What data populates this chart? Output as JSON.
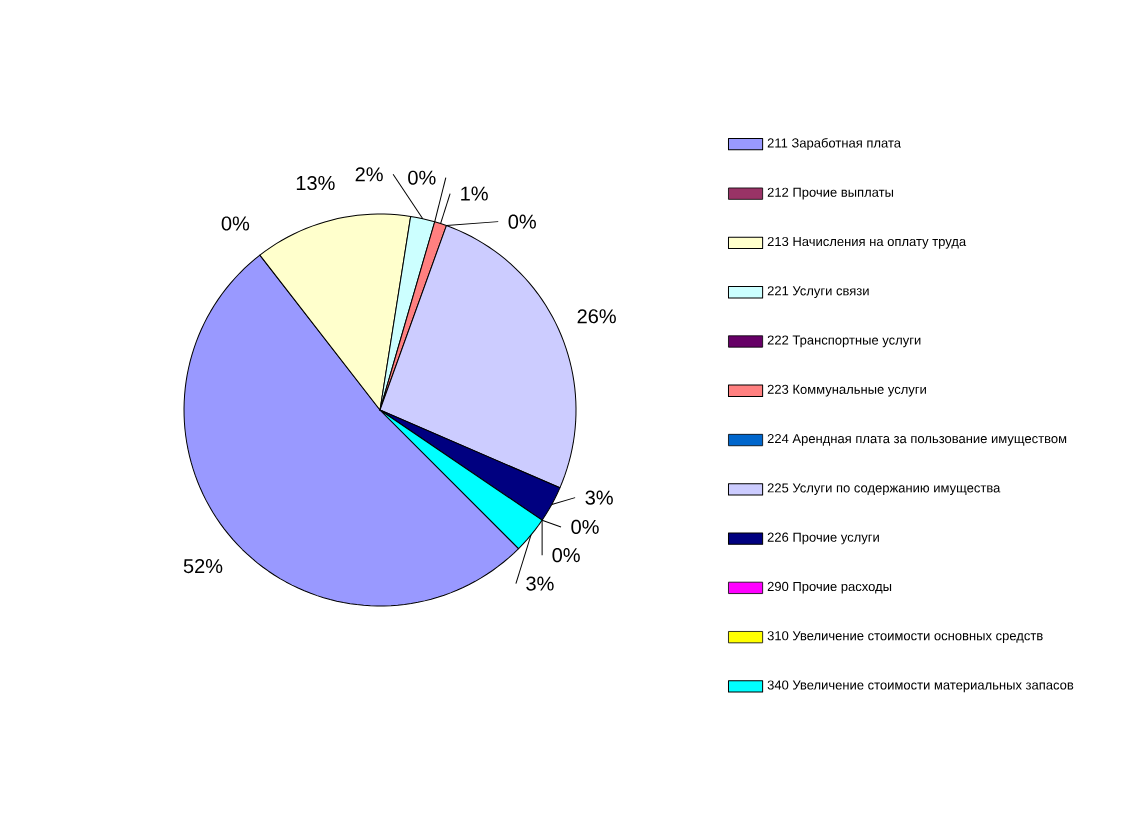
{
  "chart_data": {
    "type": "pie",
    "categories": [
      "211 Заработная плата",
      "212 Прочие выплаты",
      "213 Начисления на оплату труда",
      "221 Услуги связи",
      "222 Транспортные услуги",
      "223 Коммунальные услуги",
      "224 Арендная плата за пользование имуществом",
      "225 Услуги по содержанию имущества",
      "226 Прочие услуги",
      "290 Прочие расходы",
      "310 Увеличение стоимости основных средств",
      "340 Увеличение стоимости материальных запасов"
    ],
    "values": [
      52,
      0,
      13,
      2,
      0,
      1,
      0,
      26,
      3,
      0,
      0,
      3
    ],
    "colors": [
      "#9999ff",
      "#993366",
      "#ffffcc",
      "#ccffff",
      "#660066",
      "#ff8080",
      "#0066cc",
      "#ccccff",
      "#000080",
      "#ff00ff",
      "#ffff00",
      "#00ffff"
    ],
    "value_labels": [
      "52%",
      "0%",
      "13%",
      "2%",
      "0%",
      "1%",
      "0%",
      "26%",
      "3%",
      "0%",
      "0%",
      "3%"
    ],
    "legend": "right"
  }
}
